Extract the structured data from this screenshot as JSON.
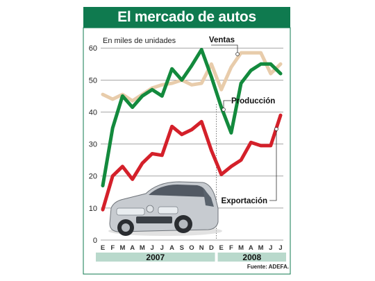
{
  "title": "El mercado de autos",
  "source": "Fuente: ADEFA.",
  "colors": {
    "title_bg": "#0f7a4f",
    "frame": "#0f7a4f",
    "grid": "#888888",
    "year_band": "#b9d9cc",
    "produccion": "#138a3d",
    "ventas": "#e8ccab",
    "exportacion": "#d4202a"
  },
  "chart_data": {
    "type": "line",
    "title": "El mercado de autos",
    "ylabel": "En miles de unidades",
    "xlabel": "",
    "ylim": [
      0,
      62
    ],
    "yticks": [
      0,
      10,
      20,
      30,
      40,
      50,
      60
    ],
    "grid": true,
    "x": [
      "E",
      "F",
      "M",
      "A",
      "M",
      "J",
      "J",
      "A",
      "S",
      "O",
      "N",
      "D",
      "E",
      "F",
      "M",
      "A",
      "M",
      "J",
      "J"
    ],
    "years": [
      {
        "label": "2007",
        "months": 12
      },
      {
        "label": "2008",
        "months": 7
      }
    ],
    "series": [
      {
        "name": "Ventas",
        "color": "#e8ccab",
        "values": [
          45.5,
          44,
          45.5,
          43.5,
          45.5,
          47.5,
          48.5,
          49,
          50,
          48.5,
          49,
          55,
          47,
          54,
          58.5,
          58.5,
          58.5,
          52,
          55
        ]
      },
      {
        "name": "Producción",
        "color": "#138a3d",
        "values": [
          17,
          35,
          45,
          41.5,
          45,
          47,
          45,
          53.5,
          50,
          54.5,
          59.5,
          51,
          41.5,
          33.5,
          49,
          53,
          55,
          55,
          52
        ]
      },
      {
        "name": "Exportación",
        "color": "#d4202a",
        "values": [
          9.5,
          20,
          23,
          19,
          24,
          27,
          26.5,
          35.5,
          33,
          34.5,
          37,
          28,
          20.5,
          23,
          25,
          30.5,
          29.5,
          29.5,
          39
        ]
      }
    ],
    "labels": [
      {
        "series": "Ventas",
        "text": "Ventas"
      },
      {
        "series": "Producción",
        "text": "Producción"
      },
      {
        "series": "Exportación",
        "text": "Exportación"
      }
    ]
  }
}
